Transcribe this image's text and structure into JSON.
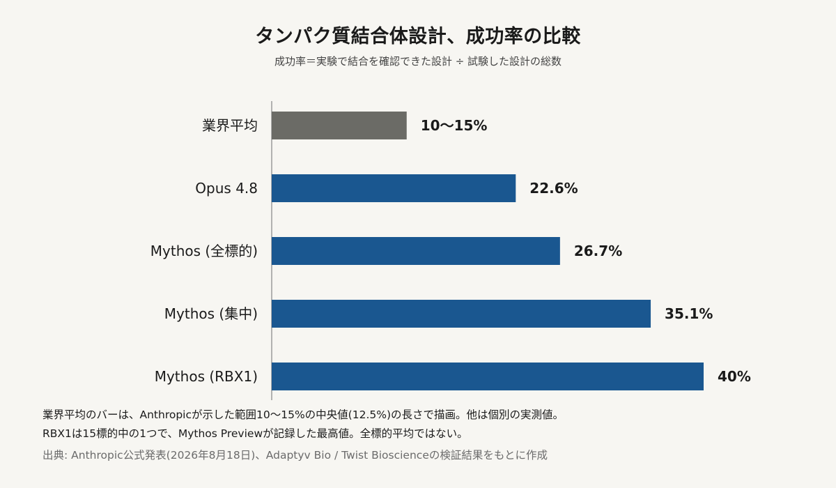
{
  "header": {
    "title": "タンパク質結合体設計、成功率の比較",
    "subtitle": "成功率＝実験で結合を確認できた設計 ÷ 試験した設計の総数"
  },
  "chart_data": {
    "type": "bar",
    "orientation": "horizontal",
    "title": "タンパク質結合体設計、成功率の比較",
    "subtitle": "成功率＝実験で結合を確認できた設計 ÷ 試験した設計の総数",
    "xlabel": "",
    "ylabel": "",
    "xlim": [
      0,
      40
    ],
    "grid": false,
    "categories": [
      "業界平均",
      "Opus 4.8",
      "Mythos (全標的)",
      "Mythos (集中)",
      "Mythos (RBX1)"
    ],
    "values": [
      12.5,
      22.6,
      26.7,
      35.1,
      40
    ],
    "value_labels": [
      "10〜15%",
      "22.6%",
      "26.7%",
      "35.1%",
      "40%"
    ],
    "colors": [
      "#6b6b66",
      "#1a5790",
      "#1a5790",
      "#1a5790",
      "#1a5790"
    ]
  },
  "notes": {
    "line1": "業界平均のバーは、Anthropicが示した範囲10〜15%の中央値(12.5%)の長さで描画。他は個別の実測値。",
    "line2": "RBX1は15標的中の1つで、Mythos Previewが記録した最高値。全標的平均ではない。",
    "source": "出典: Anthropic公式発表(2026年8月18日)、Adaptyv Bio / Twist Bioscienceの検証結果をもとに作成"
  }
}
